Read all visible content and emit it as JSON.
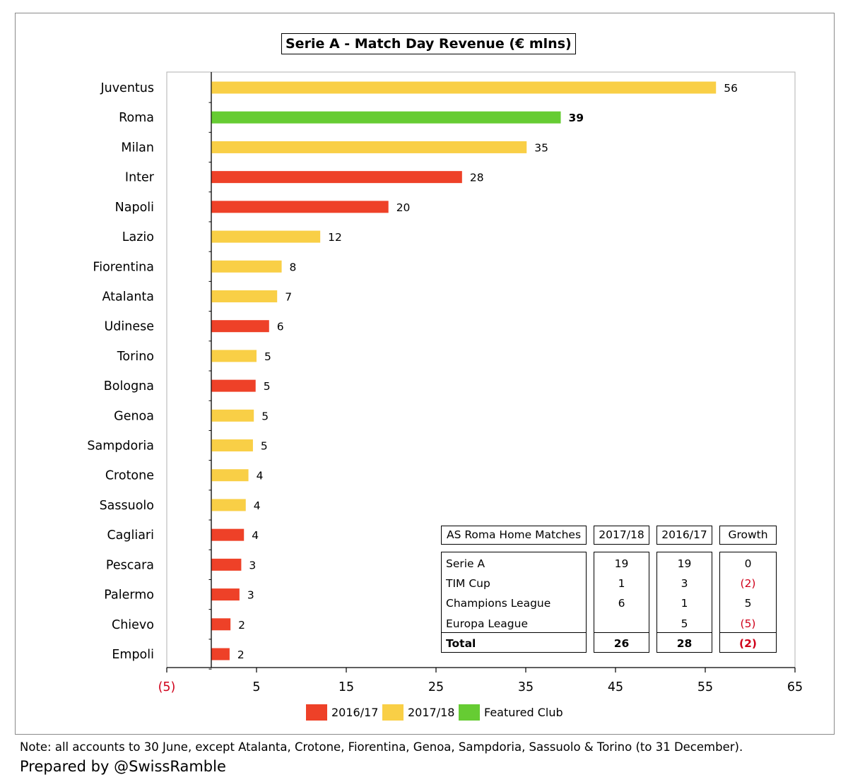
{
  "chart_data": {
    "type": "bar",
    "title": "Serie A - Match Day Revenue (€ mlns)",
    "orientation": "horizontal",
    "categories": [
      "Juventus",
      "Roma",
      "Milan",
      "Inter",
      "Napoli",
      "Lazio",
      "Fiorentina",
      "Atalanta",
      "Udinese",
      "Torino",
      "Bologna",
      "Genoa",
      "Sampdoria",
      "Crotone",
      "Sassuolo",
      "Cagliari",
      "Pescara",
      "Palermo",
      "Chievo",
      "Empoli"
    ],
    "values": [
      56.2,
      38.9,
      35.1,
      27.9,
      19.7,
      12.1,
      7.8,
      7.3,
      6.4,
      5.0,
      4.9,
      4.7,
      4.6,
      4.1,
      3.8,
      3.6,
      3.3,
      3.1,
      2.1,
      2.0
    ],
    "value_labels": [
      "56",
      "39",
      "35",
      "28",
      "20",
      "12",
      "8",
      "7",
      "6",
      "5",
      "5",
      "5",
      "5",
      "4",
      "4",
      "4",
      "3",
      "3",
      "2",
      "2"
    ],
    "series_key": [
      "2017/18",
      "Featured Club",
      "2017/18",
      "2016/17",
      "2016/17",
      "2017/18",
      "2017/18",
      "2017/18",
      "2016/17",
      "2017/18",
      "2016/17",
      "2017/18",
      "2017/18",
      "2017/18",
      "2017/18",
      "2016/17",
      "2016/17",
      "2016/17",
      "2016/17",
      "2016/17"
    ],
    "highlight": "Roma",
    "xlim": [
      -5,
      65
    ],
    "xticks": [
      -5,
      5,
      15,
      25,
      35,
      45,
      55,
      65
    ],
    "xtick_labels": [
      "(5)",
      "5",
      "15",
      "25",
      "35",
      "45",
      "55",
      "65"
    ],
    "xlabel": "",
    "ylabel": "",
    "grid": false,
    "legend": {
      "placement": "bottom",
      "items": [
        {
          "label": "2016/17",
          "color": "#ee4128"
        },
        {
          "label": "2017/18",
          "color": "#f9cf46"
        },
        {
          "label": "Featured Club",
          "color": "#66cc33"
        }
      ]
    },
    "colors": {
      "2016/17": "#ee4128",
      "2017/18": "#f9cf46",
      "Featured Club": "#66cc33",
      "negative_tick": "#d0021b"
    }
  },
  "inset_table": {
    "headers": [
      "AS Roma Home Matches",
      "2017/18",
      "2016/17",
      "Growth"
    ],
    "rows": [
      {
        "label": "Serie A",
        "a": "19",
        "b": "19",
        "growth": "0"
      },
      {
        "label": "TIM Cup",
        "a": "1",
        "b": "3",
        "growth": "(2)"
      },
      {
        "label": "Champions League",
        "a": "6",
        "b": "1",
        "growth": "5"
      },
      {
        "label": "Europa League",
        "a": "",
        "b": "5",
        "growth": "(5)"
      }
    ],
    "total": {
      "label": "Total",
      "a": "26",
      "b": "28",
      "growth": "(2)"
    }
  },
  "footer": {
    "note": "Note: all accounts to 30 June, except Atalanta, Crotone, Fiorentina, Genoa, Sampdoria, Sassuolo & Torino (to 31 December).",
    "credit": "Prepared by @SwissRamble"
  }
}
